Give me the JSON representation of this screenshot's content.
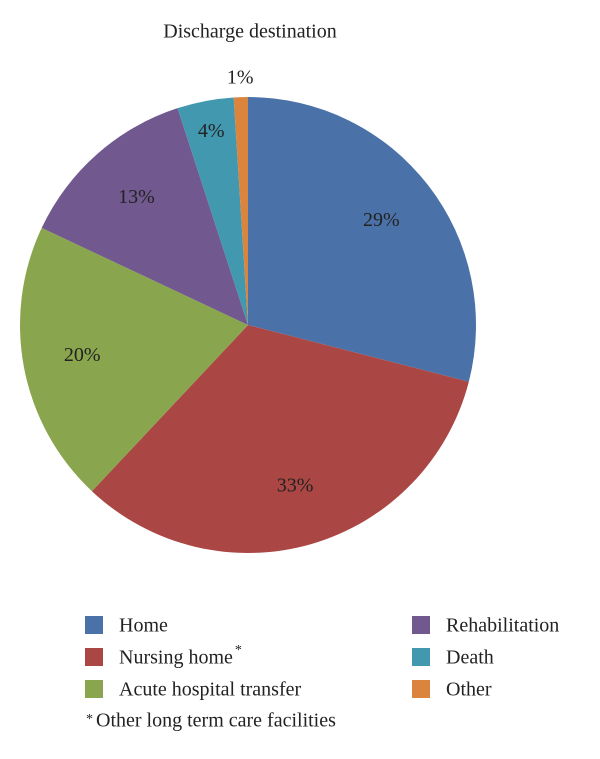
{
  "chart_data": {
    "type": "pie",
    "title": "Discharge destination",
    "categories": [
      "Home",
      "Nursing home",
      "Acute hospital transfer",
      "Rehabilitation",
      "Death",
      "Other"
    ],
    "values": [
      29,
      33,
      20,
      13,
      4,
      1
    ],
    "value_labels": [
      "29%",
      "33%",
      "20%",
      "13%",
      "4%",
      "1%"
    ],
    "colors": [
      "#4a72a8",
      "#aa4644",
      "#89a54e",
      "#71588f",
      "#4298af",
      "#db843d"
    ],
    "footnote": {
      "marker": "*",
      "text": "Other long term care facilities"
    },
    "footnote_category": 1
  }
}
